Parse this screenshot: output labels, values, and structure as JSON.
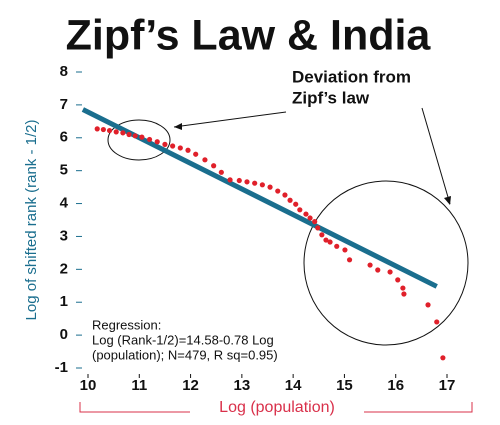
{
  "chart_data": {
    "type": "scatter",
    "title": "Zipf’s Law & India",
    "y_label": "Log of shifted rank (rank - 1/2)",
    "x_label": "Log (population)",
    "annotation": [
      "Deviation from",
      "Zipf’s law"
    ],
    "regression_text": [
      "Regression:",
      "Log (Rank-1/2)=14.58-0.78 Log",
      "(population); N=479, R sq=0.95)"
    ],
    "color": "#e0202a",
    "x": [
      10.18,
      10.3,
      10.42,
      10.55,
      10.68,
      10.8,
      10.92,
      11.05,
      11.2,
      11.35,
      11.5,
      11.65,
      11.8,
      11.95,
      12.1,
      12.28,
      12.45,
      12.6,
      12.77,
      12.95,
      13.1,
      13.25,
      13.4,
      13.55,
      13.7,
      13.84,
      13.94,
      14.05,
      14.13,
      14.25,
      14.33,
      14.42,
      14.48,
      14.56,
      14.64,
      14.72,
      14.85,
      15.01,
      15.1,
      15.5,
      15.65,
      15.89,
      16.04,
      16.14,
      16.16,
      16.63,
      16.8,
      16.92
    ],
    "values": [
      6.27,
      6.25,
      6.22,
      6.18,
      6.15,
      6.1,
      6.06,
      6.02,
      5.95,
      5.88,
      5.8,
      5.75,
      5.69,
      5.62,
      5.5,
      5.33,
      5.15,
      4.95,
      4.72,
      4.7,
      4.66,
      4.62,
      4.57,
      4.5,
      4.38,
      4.26,
      4.1,
      3.98,
      3.81,
      3.68,
      3.56,
      3.45,
      3.26,
      3.05,
      2.89,
      2.83,
      2.7,
      2.59,
      2.29,
      2.13,
      1.98,
      1.92,
      1.68,
      1.43,
      1.25,
      0.92,
      0.4,
      -0.69
    ],
    "regression_line": {
      "x": [
        9.9,
        16.8
      ],
      "values": [
        6.86,
        1.48
      ],
      "color": "#1a6e8e"
    },
    "xlim": [
      10,
      17
    ],
    "ylim": [
      -1,
      8
    ],
    "xticks": [
      10,
      11,
      12,
      13,
      14,
      15,
      16,
      17
    ],
    "yticks": [
      -1,
      0,
      1,
      2,
      3,
      4,
      5,
      6,
      7,
      8
    ]
  }
}
